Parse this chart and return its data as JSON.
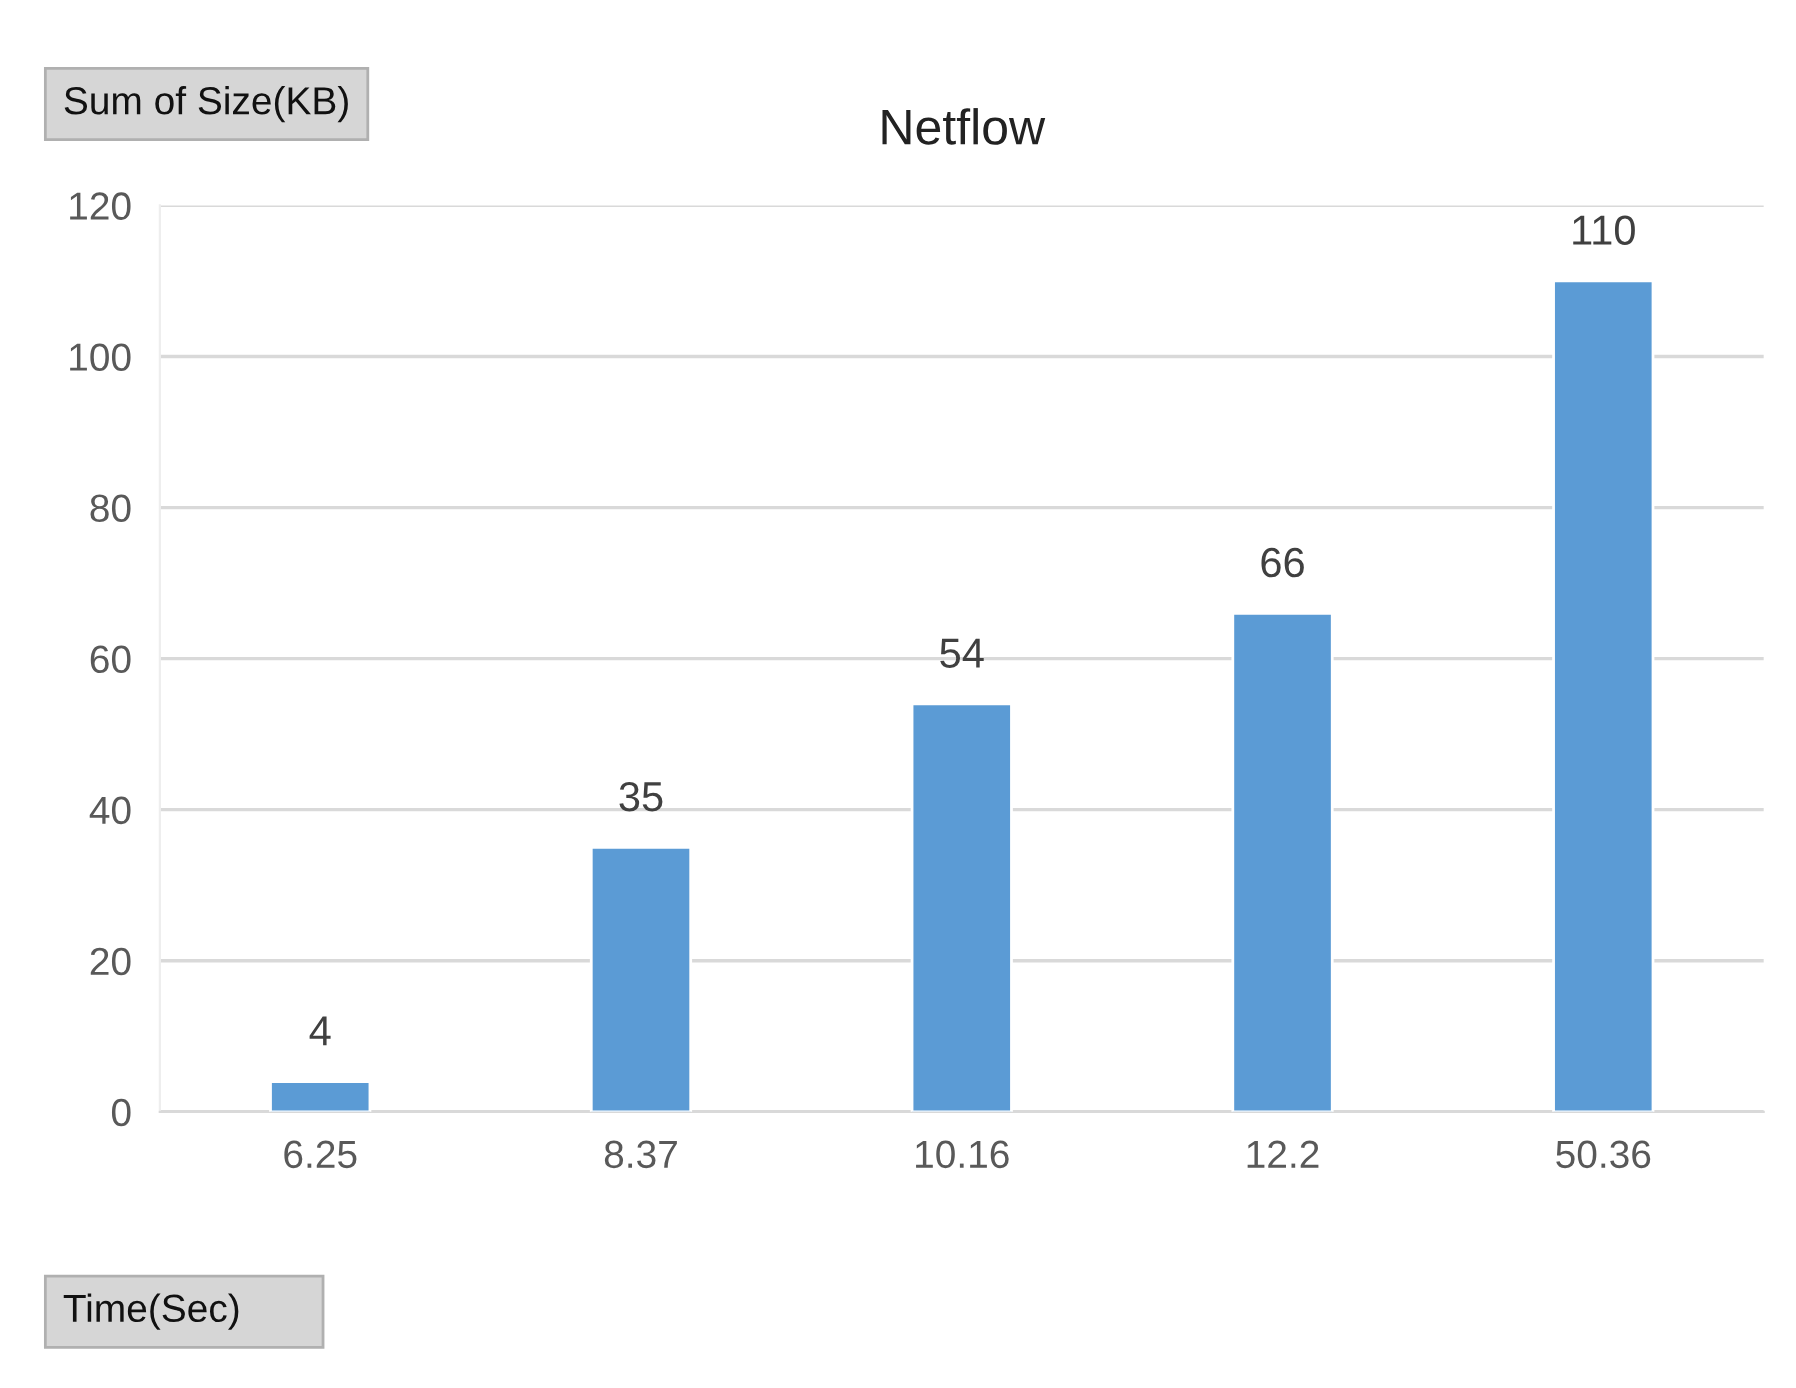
{
  "chart_data": {
    "type": "bar",
    "title": "Netflow",
    "ylabel": "Sum of Size(KB)",
    "xlabel": "Time(Sec)",
    "categories": [
      "6.25",
      "8.37",
      "10.16",
      "12.2",
      "50.36"
    ],
    "values": [
      4,
      35,
      54,
      66,
      110
    ],
    "color": "#5b9bd5",
    "ylim": [
      0,
      120
    ],
    "yticks": [
      0,
      20,
      40,
      60,
      80,
      100,
      120
    ],
    "grid": "y",
    "data_labels": true
  }
}
